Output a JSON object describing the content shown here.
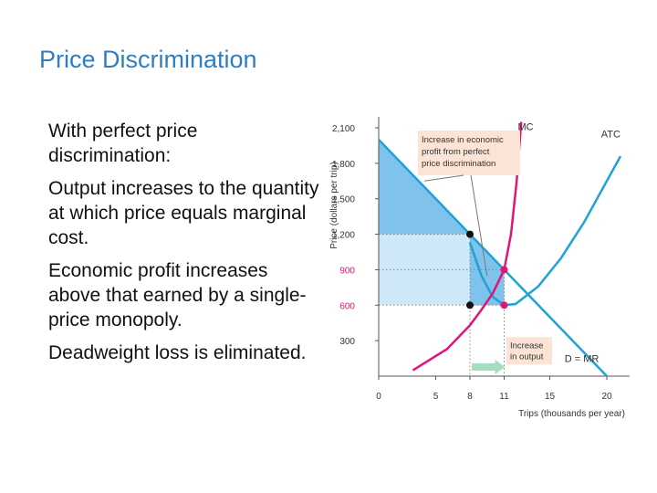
{
  "slide": {
    "title": "Price Discrimination",
    "bullets": [
      "With perfect price discrimination:",
      "Output increases to the quantity at which price equals marginal cost.",
      "Economic profit increases above that earned by a single-price monopoly.",
      "Deadweight loss is eliminated."
    ]
  },
  "colors": {
    "mc": "#e0157c",
    "atc": "#1fa2d6",
    "demand": "#1fa2d6",
    "profit_fill": "#7fc2ec",
    "profit_fill_light": "#cfe8f8",
    "price_tick": "#e0157c",
    "arrow": "#a6dcbf",
    "annotation_box": "#fbe3d5"
  },
  "chart_data": {
    "type": "line",
    "xlabel": "Trips (thousands per year)",
    "ylabel": "Price (dollars per trip)",
    "xlim": [
      0,
      22
    ],
    "ylim": [
      0,
      2100
    ],
    "x_ticks": [
      "0",
      "5",
      "8",
      "11",
      "15",
      "20"
    ],
    "x_tick_values": [
      0,
      5,
      8,
      11,
      15,
      20
    ],
    "y_ticks": [
      "300",
      "600",
      "900",
      "1,200",
      "1,500",
      "1,800",
      "2,100"
    ],
    "y_tick_values": [
      300,
      600,
      900,
      1200,
      1500,
      1800,
      2100
    ],
    "highlighted_y_ticks": [
      "600",
      "900"
    ],
    "grid": false,
    "series": [
      {
        "name": "MC",
        "points": [
          [
            3,
            50
          ],
          [
            6,
            230
          ],
          [
            8,
            430
          ],
          [
            9,
            560
          ],
          [
            10,
            700
          ],
          [
            11,
            900
          ],
          [
            11.6,
            1200
          ],
          [
            12.1,
            1650
          ],
          [
            12.5,
            2150
          ]
        ]
      },
      {
        "name": "ATC",
        "points": [
          [
            8,
            1130
          ],
          [
            9,
            850
          ],
          [
            10,
            670
          ],
          [
            11,
            600
          ],
          [
            12,
            610
          ],
          [
            14,
            760
          ],
          [
            16,
            1000
          ],
          [
            18,
            1300
          ],
          [
            20,
            1650
          ],
          [
            21.2,
            1860
          ]
        ]
      },
      {
        "name": "D = MR",
        "points": [
          [
            0,
            2000
          ],
          [
            20,
            0
          ]
        ]
      }
    ],
    "points": [
      {
        "x": 8,
        "y": 1200,
        "color": "black"
      },
      {
        "x": 8,
        "y": 600,
        "color": "black"
      },
      {
        "x": 11,
        "y": 900,
        "color": "magenta"
      },
      {
        "x": 11,
        "y": 600,
        "color": "magenta"
      }
    ],
    "annotations": [
      "Increase in economic profit from perfect price discrimination",
      "Increase in output"
    ]
  }
}
